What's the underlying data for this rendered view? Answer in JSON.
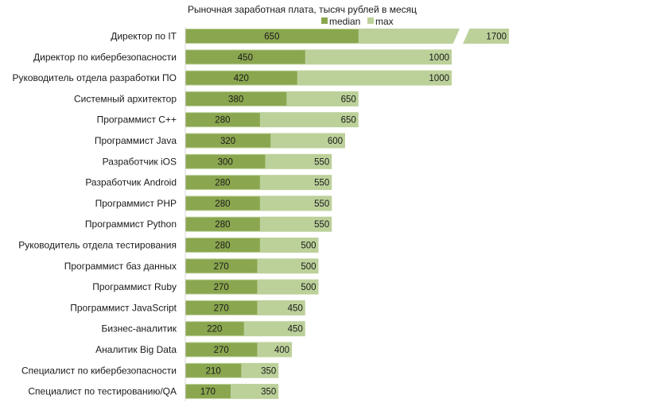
{
  "chart_data": {
    "type": "bar",
    "orientation": "horizontal",
    "title": "Рыночная заработная плата, тысяч рублей в месяц",
    "xlabel": "",
    "ylabel": "",
    "grid": false,
    "legend_position": "top",
    "axis_break": {
      "series": "max",
      "category": "Директор по IT"
    },
    "xlim": [
      0,
      1700
    ],
    "categories": [
      "Директор по IT",
      "Директор по кибербезопасности",
      "Руководитель отдела разработки ПО",
      "Системный архитектор",
      "Программист С++",
      "Программист Java",
      "Разработчик iOS",
      "Разработчик Android",
      "Программист PHP",
      "Программист Python",
      "Руководитель отдела тестирования",
      "Программист баз данных",
      "Программист Ruby",
      "Программист JavaScript",
      "Бизнес-аналитик",
      "Аналитик Big Data",
      "Специалист по кибербезопасности",
      "Специалист по тестированию/QA"
    ],
    "series": [
      {
        "name": "median",
        "color": "#8aa64f",
        "values": [
          650,
          450,
          420,
          380,
          280,
          320,
          300,
          280,
          280,
          280,
          280,
          270,
          270,
          270,
          220,
          270,
          210,
          170
        ]
      },
      {
        "name": "max",
        "color": "#bcd19a",
        "values": [
          1700,
          1000,
          1000,
          650,
          650,
          600,
          550,
          550,
          550,
          550,
          500,
          500,
          500,
          450,
          450,
          400,
          350,
          350
        ]
      }
    ]
  }
}
